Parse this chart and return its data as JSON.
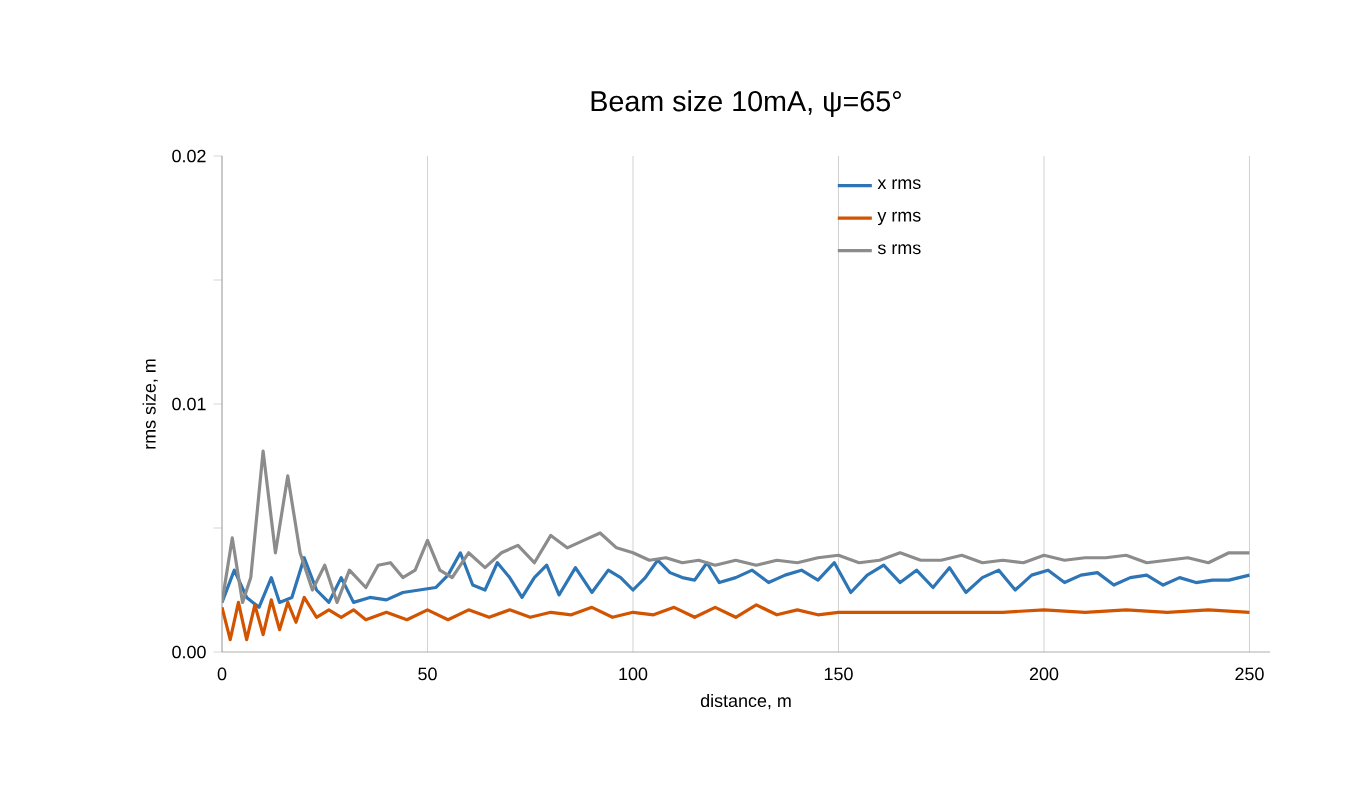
{
  "chart_data": {
    "type": "line",
    "title": "Beam size 10mA, ψ=65°",
    "xlabel": "distance, m",
    "ylabel": "rms size, m",
    "xlim": [
      0,
      255
    ],
    "xticks": [
      0,
      50,
      100,
      150,
      200,
      250
    ],
    "ylim": [
      0,
      0.02
    ],
    "yticks": [
      {
        "value": 0,
        "label": "0.00"
      },
      {
        "value": 0.005,
        "label": null
      },
      {
        "value": 0.01,
        "label": "0.01"
      },
      {
        "value": 0.015,
        "label": null
      },
      {
        "value": 0.02,
        "label": "0.02"
      }
    ],
    "grid": "x",
    "legend": "top right",
    "marker": "none",
    "line_style": "solid",
    "series": [
      {
        "name": "x rms",
        "color": "#2e75b6",
        "x": [
          0,
          3,
          6,
          9,
          12,
          14,
          17,
          20,
          23,
          26,
          29,
          32,
          36,
          40,
          44,
          48,
          52,
          55,
          58,
          61,
          64,
          67,
          70,
          73,
          76,
          79,
          82,
          86,
          90,
          94,
          97,
          100,
          103,
          106,
          109,
          112,
          115,
          118,
          121,
          125,
          129,
          133,
          137,
          141,
          145,
          149,
          153,
          157,
          161,
          165,
          169,
          173,
          177,
          181,
          185,
          189,
          193,
          197,
          201,
          205,
          209,
          213,
          217,
          221,
          225,
          229,
          233,
          237,
          241,
          245,
          250
        ],
        "values": [
          0.002,
          0.0033,
          0.0022,
          0.0018,
          0.003,
          0.002,
          0.0022,
          0.0038,
          0.0025,
          0.002,
          0.003,
          0.002,
          0.0022,
          0.0021,
          0.0024,
          0.0025,
          0.0026,
          0.0031,
          0.004,
          0.0027,
          0.0025,
          0.0036,
          0.003,
          0.0022,
          0.003,
          0.0035,
          0.0023,
          0.0034,
          0.0024,
          0.0033,
          0.003,
          0.0025,
          0.003,
          0.0037,
          0.0032,
          0.003,
          0.0029,
          0.0036,
          0.0028,
          0.003,
          0.0033,
          0.0028,
          0.0031,
          0.0033,
          0.0029,
          0.0036,
          0.0024,
          0.0031,
          0.0035,
          0.0028,
          0.0033,
          0.0026,
          0.0034,
          0.0024,
          0.003,
          0.0033,
          0.0025,
          0.0031,
          0.0033,
          0.0028,
          0.0031,
          0.0032,
          0.0027,
          0.003,
          0.0031,
          0.0027,
          0.003,
          0.0028,
          0.0029,
          0.0029,
          0.0031
        ]
      },
      {
        "name": "y rms",
        "color": "#d35400",
        "x": [
          0,
          2,
          4,
          6,
          8,
          10,
          12,
          14,
          16,
          18,
          20,
          23,
          26,
          29,
          32,
          35,
          40,
          45,
          50,
          55,
          60,
          65,
          70,
          75,
          80,
          85,
          90,
          95,
          100,
          105,
          110,
          115,
          120,
          125,
          130,
          135,
          140,
          145,
          150,
          160,
          170,
          180,
          190,
          200,
          210,
          220,
          230,
          240,
          250
        ],
        "values": [
          0.0018,
          0.0005,
          0.002,
          0.0005,
          0.0019,
          0.0007,
          0.0021,
          0.0009,
          0.002,
          0.0012,
          0.0022,
          0.0014,
          0.0017,
          0.0014,
          0.0017,
          0.0013,
          0.0016,
          0.0013,
          0.0017,
          0.0013,
          0.0017,
          0.0014,
          0.0017,
          0.0014,
          0.0016,
          0.0015,
          0.0018,
          0.0014,
          0.0016,
          0.0015,
          0.0018,
          0.0014,
          0.0018,
          0.0014,
          0.0019,
          0.0015,
          0.0017,
          0.0015,
          0.0016,
          0.0016,
          0.0016,
          0.0016,
          0.0016,
          0.0017,
          0.0016,
          0.0017,
          0.0016,
          0.0017,
          0.0016
        ]
      },
      {
        "name": "s rms",
        "color": "#8c8c8c",
        "x": [
          0,
          2.5,
          5,
          7,
          10,
          13,
          16,
          19,
          22,
          25,
          28,
          31,
          35,
          38,
          41,
          44,
          47,
          50,
          53,
          56,
          60,
          64,
          68,
          72,
          76,
          80,
          84,
          88,
          92,
          96,
          100,
          104,
          108,
          112,
          116,
          120,
          125,
          130,
          135,
          140,
          145,
          150,
          155,
          160,
          165,
          170,
          175,
          180,
          185,
          190,
          195,
          200,
          205,
          210,
          215,
          220,
          225,
          230,
          235,
          240,
          245,
          250
        ],
        "values": [
          0.002,
          0.0046,
          0.002,
          0.003,
          0.0081,
          0.004,
          0.0071,
          0.004,
          0.0025,
          0.0035,
          0.002,
          0.0033,
          0.0026,
          0.0035,
          0.0036,
          0.003,
          0.0033,
          0.0045,
          0.0033,
          0.003,
          0.004,
          0.0034,
          0.004,
          0.0043,
          0.0036,
          0.0047,
          0.0042,
          0.0045,
          0.0048,
          0.0042,
          0.004,
          0.0037,
          0.0038,
          0.0036,
          0.0037,
          0.0035,
          0.0037,
          0.0035,
          0.0037,
          0.0036,
          0.0038,
          0.0039,
          0.0036,
          0.0037,
          0.004,
          0.0037,
          0.0037,
          0.0039,
          0.0036,
          0.0037,
          0.0036,
          0.0039,
          0.0037,
          0.0038,
          0.0038,
          0.0039,
          0.0036,
          0.0037,
          0.0038,
          0.0036,
          0.004,
          0.004
        ]
      }
    ]
  }
}
